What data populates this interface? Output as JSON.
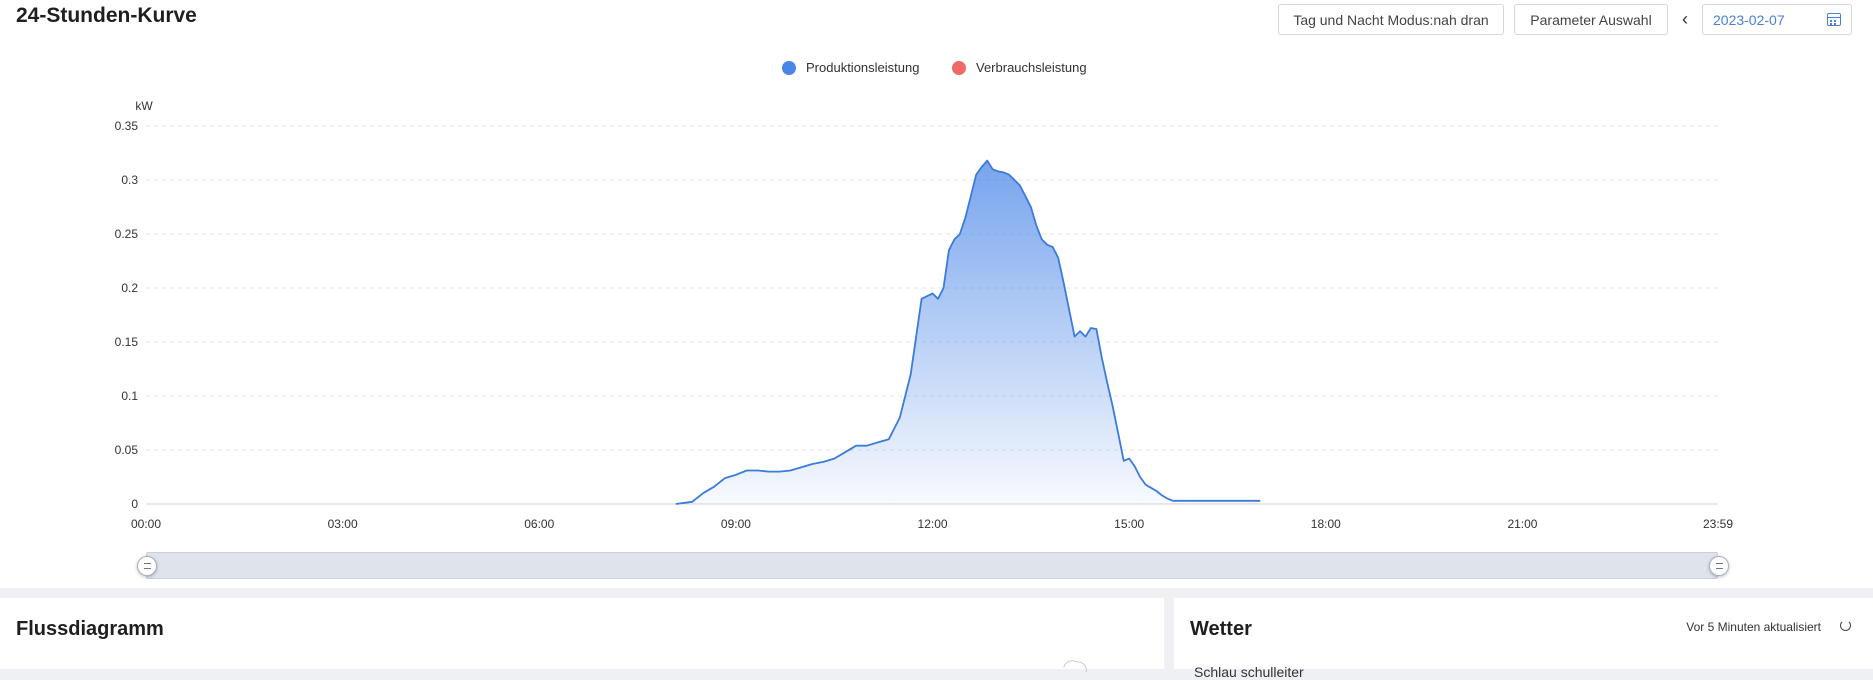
{
  "header": {
    "title": "24-Stunden-Kurve",
    "mode_button": "Tag und Nacht Modus:nah dran",
    "param_button": "Parameter Auswahl",
    "prev_icon": "chevron-left-icon",
    "date": "2023-02-07",
    "calendar_icon": "calendar-icon"
  },
  "colors": {
    "production": "#4a86e8",
    "consumption": "#f06a6a",
    "line": "#3b7bd9"
  },
  "chart_data": {
    "type": "area",
    "ylabel": "kW",
    "ylim": [
      0,
      0.35
    ],
    "yticks": [
      "0",
      "0.05",
      "0.1",
      "0.15",
      "0.2",
      "0.25",
      "0.3",
      "0.35"
    ],
    "xlim": [
      "00:00",
      "23:59"
    ],
    "xticks": [
      "00:00",
      "03:00",
      "06:00",
      "09:00",
      "12:00",
      "15:00",
      "18:00",
      "21:00",
      "23:59"
    ],
    "grid": true,
    "legend_position": "top-center",
    "legend": [
      {
        "name": "Produktionsleistung",
        "color": "#4a86e8"
      },
      {
        "name": "Verbrauchsleistung",
        "color": "#f06a6a"
      }
    ],
    "series": [
      {
        "name": "Produktionsleistung",
        "x": [
          "08:05",
          "08:20",
          "08:30",
          "08:40",
          "08:50",
          "09:00",
          "09:10",
          "09:20",
          "09:30",
          "09:40",
          "09:50",
          "10:00",
          "10:10",
          "10:20",
          "10:30",
          "10:40",
          "10:50",
          "11:00",
          "11:10",
          "11:20",
          "11:30",
          "11:40",
          "11:50",
          "12:00",
          "12:05",
          "12:10",
          "12:15",
          "12:20",
          "12:25",
          "12:30",
          "12:35",
          "12:40",
          "12:45",
          "12:50",
          "12:55",
          "13:00",
          "13:05",
          "13:10",
          "13:15",
          "13:20",
          "13:25",
          "13:30",
          "13:35",
          "13:40",
          "13:45",
          "13:50",
          "13:55",
          "14:00",
          "14:05",
          "14:10",
          "14:15",
          "14:20",
          "14:25",
          "14:30",
          "14:35",
          "14:40",
          "14:45",
          "14:50",
          "14:55",
          "15:00",
          "15:05",
          "15:10",
          "15:15",
          "15:20",
          "15:25",
          "15:30",
          "15:35",
          "15:40",
          "15:45",
          "15:50",
          "15:55",
          "16:00",
          "16:05",
          "16:10",
          "16:15",
          "16:20",
          "16:25",
          "16:30",
          "16:35",
          "16:40",
          "16:50",
          "17:00"
        ],
        "values": [
          0,
          0.002,
          0.01,
          0.016,
          0.024,
          0.027,
          0.031,
          0.031,
          0.03,
          0.03,
          0.031,
          0.034,
          0.037,
          0.039,
          0.042,
          0.048,
          0.054,
          0.054,
          0.057,
          0.06,
          0.08,
          0.12,
          0.19,
          0.195,
          0.19,
          0.2,
          0.235,
          0.245,
          0.25,
          0.265,
          0.285,
          0.305,
          0.312,
          0.318,
          0.31,
          0.308,
          0.307,
          0.305,
          0.3,
          0.295,
          0.285,
          0.275,
          0.258,
          0.245,
          0.24,
          0.238,
          0.228,
          0.205,
          0.18,
          0.155,
          0.16,
          0.155,
          0.163,
          0.162,
          0.135,
          0.112,
          0.09,
          0.065,
          0.04,
          0.042,
          0.035,
          0.025,
          0.018,
          0.015,
          0.012,
          0.008,
          0.005,
          0.003,
          0.003,
          0.003,
          0.003,
          0.003,
          0.003,
          0.003,
          0.003,
          0.003,
          0.003,
          0.003,
          0.003,
          0.003,
          0.003,
          0.003
        ]
      }
    ]
  },
  "slider": {
    "handle_icon": "drag-handle-icon"
  },
  "flow_panel": {
    "title": "Flussdiagramm"
  },
  "weather_panel": {
    "title": "Wetter",
    "updated": "Vor 5 Minuten aktualisiert",
    "refresh_icon": "refresh-icon",
    "subtitle": "Schlau schulleiter"
  }
}
